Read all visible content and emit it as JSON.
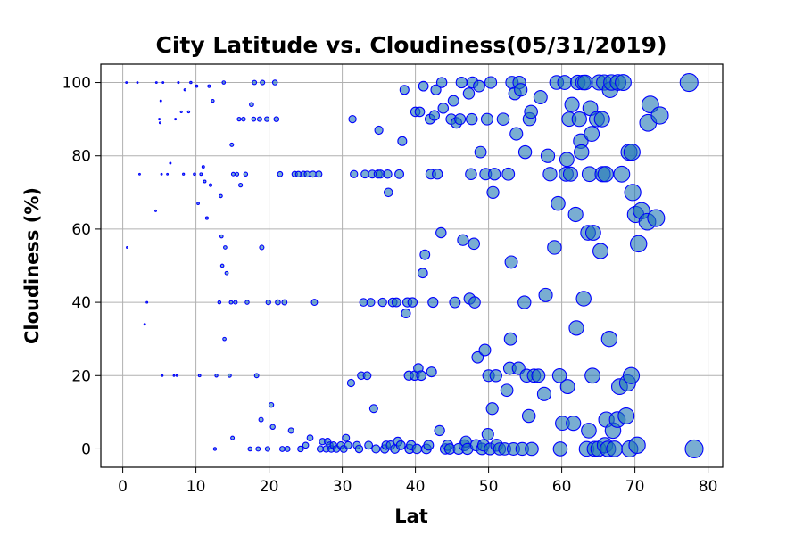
{
  "chart_data": {
    "type": "scatter",
    "title": "City Latitude vs. Cloudiness(05/31/2019)",
    "xlabel": "Lat",
    "ylabel": "Cloudiness (%)",
    "xlim": [
      -3,
      82
    ],
    "ylim": [
      -5,
      105
    ],
    "xticks": [
      0,
      10,
      20,
      30,
      40,
      50,
      60,
      70,
      80
    ],
    "yticks": [
      0,
      20,
      40,
      60,
      80,
      100
    ],
    "grid": true,
    "marker_color": "#1f77b4",
    "marker_edge_color": "#0000ff",
    "marker_alpha": 0.6,
    "marker_size_note": "marker size grows with latitude",
    "series": [
      {
        "points": [
          [
            0.5,
            100
          ],
          [
            0.6,
            55
          ],
          [
            2.0,
            100
          ],
          [
            2.3,
            75
          ],
          [
            3.0,
            34
          ],
          [
            3.3,
            40
          ],
          [
            4.5,
            65
          ],
          [
            4.6,
            100
          ],
          [
            5.0,
            90
          ],
          [
            5.1,
            89
          ],
          [
            5.2,
            95
          ],
          [
            5.3,
            75
          ],
          [
            5.4,
            20
          ],
          [
            5.5,
            100
          ],
          [
            6.1,
            75
          ],
          [
            6.5,
            78
          ],
          [
            7.0,
            20
          ],
          [
            7.2,
            90
          ],
          [
            7.4,
            20
          ],
          [
            7.6,
            100
          ],
          [
            8.0,
            92
          ],
          [
            8.3,
            75
          ],
          [
            8.5,
            98
          ],
          [
            9.0,
            92
          ],
          [
            9.3,
            100
          ],
          [
            9.8,
            75
          ],
          [
            10.1,
            99
          ],
          [
            10.3,
            67
          ],
          [
            10.5,
            20
          ],
          [
            10.7,
            75
          ],
          [
            11.0,
            77
          ],
          [
            11.2,
            73
          ],
          [
            11.5,
            63
          ],
          [
            11.8,
            99
          ],
          [
            12.0,
            72
          ],
          [
            12.3,
            95
          ],
          [
            12.6,
            0
          ],
          [
            12.8,
            20
          ],
          [
            13.2,
            40
          ],
          [
            13.4,
            69
          ],
          [
            13.5,
            58
          ],
          [
            13.6,
            50
          ],
          [
            13.8,
            100
          ],
          [
            13.9,
            30
          ],
          [
            14.0,
            55
          ],
          [
            14.2,
            48
          ],
          [
            14.6,
            20
          ],
          [
            14.8,
            40
          ],
          [
            14.9,
            83
          ],
          [
            15.0,
            3
          ],
          [
            15.1,
            75
          ],
          [
            15.4,
            40
          ],
          [
            15.6,
            75
          ],
          [
            15.9,
            90
          ],
          [
            16.1,
            72
          ],
          [
            16.5,
            90
          ],
          [
            16.8,
            75
          ],
          [
            17.0,
            40
          ],
          [
            17.4,
            0
          ],
          [
            17.6,
            94
          ],
          [
            17.9,
            90
          ],
          [
            18.0,
            100
          ],
          [
            18.3,
            20
          ],
          [
            18.5,
            0
          ],
          [
            18.7,
            90
          ],
          [
            18.9,
            8
          ],
          [
            19.0,
            55
          ],
          [
            19.1,
            100
          ],
          [
            19.7,
            90
          ],
          [
            19.8,
            0
          ],
          [
            19.9,
            40
          ],
          [
            20.3,
            12
          ],
          [
            20.5,
            6
          ],
          [
            20.8,
            100
          ],
          [
            21.0,
            90
          ],
          [
            21.2,
            40
          ],
          [
            21.5,
            75
          ],
          [
            21.8,
            0
          ],
          [
            22.1,
            40
          ],
          [
            22.5,
            0
          ],
          [
            23.0,
            5
          ],
          [
            23.5,
            75
          ],
          [
            24.0,
            75
          ],
          [
            24.3,
            0
          ],
          [
            24.7,
            75
          ],
          [
            25.0,
            1
          ],
          [
            25.2,
            75
          ],
          [
            25.6,
            3
          ],
          [
            26.0,
            75
          ],
          [
            26.2,
            40
          ],
          [
            26.8,
            75
          ],
          [
            27.0,
            0
          ],
          [
            27.3,
            2
          ],
          [
            27.8,
            0
          ],
          [
            28.0,
            2
          ],
          [
            28.3,
            1
          ],
          [
            28.5,
            0
          ],
          [
            28.8,
            1
          ],
          [
            29.2,
            0
          ],
          [
            29.8,
            1
          ],
          [
            30.2,
            0
          ],
          [
            30.5,
            3
          ],
          [
            30.8,
            1
          ],
          [
            31.2,
            18
          ],
          [
            31.4,
            90
          ],
          [
            31.6,
            75
          ],
          [
            32.0,
            1
          ],
          [
            32.3,
            0
          ],
          [
            32.6,
            20
          ],
          [
            32.9,
            40
          ],
          [
            33.1,
            75
          ],
          [
            33.4,
            20
          ],
          [
            33.6,
            1
          ],
          [
            33.9,
            40
          ],
          [
            34.1,
            75
          ],
          [
            34.3,
            11
          ],
          [
            34.6,
            0
          ],
          [
            34.9,
            75
          ],
          [
            35.0,
            87
          ],
          [
            35.2,
            75
          ],
          [
            35.5,
            40
          ],
          [
            35.8,
            0
          ],
          [
            36.0,
            1
          ],
          [
            36.2,
            75
          ],
          [
            36.3,
            70
          ],
          [
            36.6,
            1
          ],
          [
            36.9,
            40
          ],
          [
            37.2,
            0
          ],
          [
            37.4,
            40
          ],
          [
            37.6,
            2
          ],
          [
            37.8,
            75
          ],
          [
            38.0,
            1
          ],
          [
            38.2,
            84
          ],
          [
            38.5,
            98
          ],
          [
            38.7,
            37
          ],
          [
            38.9,
            40
          ],
          [
            39.1,
            20
          ],
          [
            39.2,
            0
          ],
          [
            39.4,
            1
          ],
          [
            39.6,
            40
          ],
          [
            39.9,
            20
          ],
          [
            40.0,
            92
          ],
          [
            40.2,
            0
          ],
          [
            40.4,
            22
          ],
          [
            40.6,
            92
          ],
          [
            40.8,
            20
          ],
          [
            41.0,
            48
          ],
          [
            41.1,
            99
          ],
          [
            41.3,
            53
          ],
          [
            41.5,
            0
          ],
          [
            41.8,
            1
          ],
          [
            42.0,
            90
          ],
          [
            42.1,
            75
          ],
          [
            42.2,
            21
          ],
          [
            42.4,
            40
          ],
          [
            42.6,
            91
          ],
          [
            42.8,
            98
          ],
          [
            43.0,
            75
          ],
          [
            43.3,
            5
          ],
          [
            43.5,
            59
          ],
          [
            43.6,
            100
          ],
          [
            43.8,
            93
          ],
          [
            44.1,
            0
          ],
          [
            44.4,
            1
          ],
          [
            44.7,
            0
          ],
          [
            44.9,
            90
          ],
          [
            45.2,
            95
          ],
          [
            45.4,
            40
          ],
          [
            45.6,
            89
          ],
          [
            45.9,
            0
          ],
          [
            46.1,
            90
          ],
          [
            46.3,
            100
          ],
          [
            46.5,
            57
          ],
          [
            46.7,
            1
          ],
          [
            46.9,
            2
          ],
          [
            47.1,
            0
          ],
          [
            47.3,
            97
          ],
          [
            47.4,
            41
          ],
          [
            47.6,
            75
          ],
          [
            47.7,
            90
          ],
          [
            47.8,
            100
          ],
          [
            48.0,
            56
          ],
          [
            48.1,
            40
          ],
          [
            48.3,
            1
          ],
          [
            48.5,
            25
          ],
          [
            48.7,
            99
          ],
          [
            48.9,
            81
          ],
          [
            49.1,
            0
          ],
          [
            49.3,
            1
          ],
          [
            49.5,
            27
          ],
          [
            49.6,
            75
          ],
          [
            49.8,
            90
          ],
          [
            49.9,
            4
          ],
          [
            50.0,
            20
          ],
          [
            50.2,
            0
          ],
          [
            50.3,
            100
          ],
          [
            50.5,
            11
          ],
          [
            50.6,
            70
          ],
          [
            50.8,
            75
          ],
          [
            51.0,
            20
          ],
          [
            51.1,
            1
          ],
          [
            51.5,
            0
          ],
          [
            52.0,
            90
          ],
          [
            52.2,
            0
          ],
          [
            52.5,
            16
          ],
          [
            52.7,
            75
          ],
          [
            52.9,
            22
          ],
          [
            53.0,
            30
          ],
          [
            53.1,
            51
          ],
          [
            53.2,
            100
          ],
          [
            53.4,
            0
          ],
          [
            53.6,
            97
          ],
          [
            53.8,
            86
          ],
          [
            54.1,
            22
          ],
          [
            54.2,
            100
          ],
          [
            54.4,
            98
          ],
          [
            54.6,
            0
          ],
          [
            54.9,
            40
          ],
          [
            55.0,
            81
          ],
          [
            55.2,
            20
          ],
          [
            55.5,
            9
          ],
          [
            55.6,
            90
          ],
          [
            55.8,
            92
          ],
          [
            55.9,
            0
          ],
          [
            56.2,
            20
          ],
          [
            56.8,
            20
          ],
          [
            57.1,
            96
          ],
          [
            57.6,
            15
          ],
          [
            57.8,
            42
          ],
          [
            58.1,
            80
          ],
          [
            58.4,
            75
          ],
          [
            59.0,
            55
          ],
          [
            59.3,
            100
          ],
          [
            59.5,
            67
          ],
          [
            59.7,
            20
          ],
          [
            59.8,
            0
          ],
          [
            60.1,
            7
          ],
          [
            60.4,
            100
          ],
          [
            60.6,
            75
          ],
          [
            60.7,
            79
          ],
          [
            60.8,
            17
          ],
          [
            61.0,
            90
          ],
          [
            61.2,
            75
          ],
          [
            61.4,
            94
          ],
          [
            61.6,
            7
          ],
          [
            61.9,
            64
          ],
          [
            62.0,
            33
          ],
          [
            62.2,
            100
          ],
          [
            62.4,
            90
          ],
          [
            62.6,
            84
          ],
          [
            62.7,
            81
          ],
          [
            62.9,
            100
          ],
          [
            63.0,
            41
          ],
          [
            63.2,
            100
          ],
          [
            63.4,
            0
          ],
          [
            63.6,
            59
          ],
          [
            63.7,
            5
          ],
          [
            63.8,
            75
          ],
          [
            63.9,
            93
          ],
          [
            64.1,
            86
          ],
          [
            64.2,
            20
          ],
          [
            64.3,
            59
          ],
          [
            64.5,
            0
          ],
          [
            64.8,
            90
          ],
          [
            65.0,
            0
          ],
          [
            65.1,
            100
          ],
          [
            65.3,
            54
          ],
          [
            65.5,
            90
          ],
          [
            65.6,
            75
          ],
          [
            65.8,
            100
          ],
          [
            65.9,
            1
          ],
          [
            66.0,
            75
          ],
          [
            66.1,
            8
          ],
          [
            66.3,
            0
          ],
          [
            66.5,
            30
          ],
          [
            66.6,
            98
          ],
          [
            66.8,
            100
          ],
          [
            67.0,
            5
          ],
          [
            67.2,
            0
          ],
          [
            67.6,
            8
          ],
          [
            67.7,
            100
          ],
          [
            67.9,
            17
          ],
          [
            68.2,
            75
          ],
          [
            68.4,
            100
          ],
          [
            68.8,
            9
          ],
          [
            69.0,
            18
          ],
          [
            69.2,
            81
          ],
          [
            69.3,
            0
          ],
          [
            69.5,
            20
          ],
          [
            69.6,
            81
          ],
          [
            69.7,
            70
          ],
          [
            70.1,
            64
          ],
          [
            70.3,
            1
          ],
          [
            70.5,
            56
          ],
          [
            70.9,
            65
          ],
          [
            71.7,
            62
          ],
          [
            71.8,
            89
          ],
          [
            72.1,
            94
          ],
          [
            72.9,
            63
          ],
          [
            73.4,
            91
          ],
          [
            77.4,
            100
          ],
          [
            78.1,
            0
          ]
        ]
      }
    ]
  }
}
